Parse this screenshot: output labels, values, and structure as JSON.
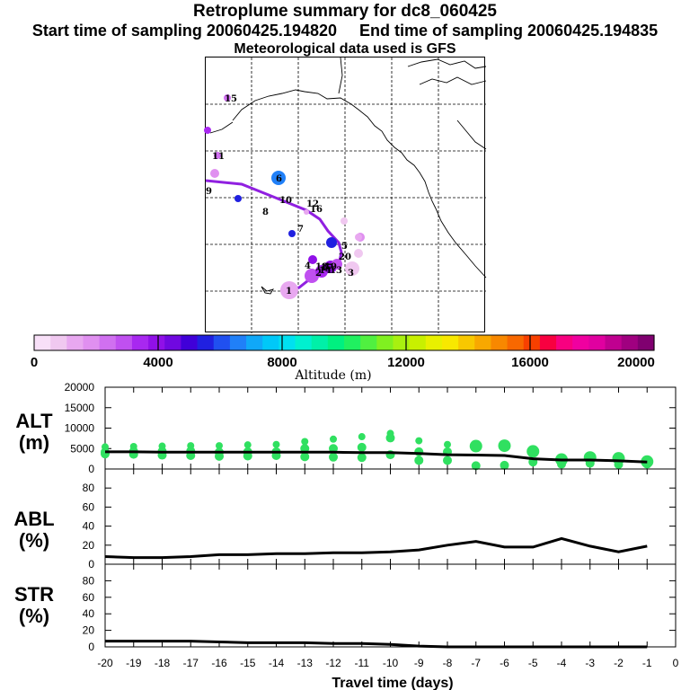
{
  "header": {
    "title": "Retroplume summary for dc8_060425",
    "start_label": "Start time of sampling 20060425.194820",
    "end_label": "End time of sampling 20060425.194835",
    "met_label": "Meteorological data used is GFS"
  },
  "colorbar": {
    "ticks": [
      "0",
      "4000",
      "8000",
      "12000",
      "16000",
      "20000"
    ],
    "label": "Altitude (m)",
    "colors": [
      "#f8e0f8",
      "#f0c8f0",
      "#e8a8f0",
      "#e090f0",
      "#d070f0",
      "#c050f0",
      "#a828f0",
      "#9010e8",
      "#7008e0",
      "#4000d8",
      "#2020e0",
      "#2050f0",
      "#2080f8",
      "#10a8f8",
      "#00c8f8",
      "#00e0f0",
      "#00f0d0",
      "#00f0a8",
      "#00f080",
      "#20f060",
      "#50f040",
      "#80f020",
      "#a8f010",
      "#c8f000",
      "#e8f000",
      "#f8e800",
      "#f8c800",
      "#f8a800",
      "#f88800",
      "#f86800",
      "#f84000",
      "#f80040",
      "#f80080",
      "#f000a0",
      "#e000a0",
      "#c00090",
      "#a00080",
      "#800070"
    ]
  },
  "map": {
    "trajectory_labels": [
      "1",
      "2",
      "3",
      "4",
      "5",
      "6",
      "7",
      "8",
      "9",
      "10",
      "11",
      "12",
      "13",
      "14",
      "15",
      "16",
      "17",
      "18",
      "19",
      "20"
    ]
  },
  "chart_data": [
    {
      "type": "line",
      "panel": "ALT",
      "ylabel": "ALT\n(m)",
      "ylabel_lines": [
        "ALT",
        "(m)"
      ],
      "ylim": [
        0,
        20000
      ],
      "yticks": [
        "0",
        "5000",
        "10000",
        "15000",
        "20000"
      ],
      "x": [
        -20,
        -19,
        -18,
        -17,
        -16,
        -15,
        -14,
        -13,
        -12,
        -11,
        -10,
        -9,
        -8,
        -7,
        -6,
        -5,
        -4,
        -3,
        -2,
        -1
      ],
      "values": [
        4200,
        4200,
        4100,
        4100,
        4100,
        4100,
        4100,
        4100,
        4100,
        4000,
        4000,
        3800,
        3500,
        3400,
        3300,
        2500,
        2200,
        2200,
        2000,
        1700
      ],
      "scatter": [
        {
          "x": -20,
          "ys": [
            5400,
            4100,
            3700
          ]
        },
        {
          "x": -19,
          "ys": [
            5500,
            4300,
            3600
          ]
        },
        {
          "x": -18,
          "ys": [
            5600,
            4300,
            3400
          ]
        },
        {
          "x": -17,
          "ys": [
            5700,
            4400,
            3300
          ]
        },
        {
          "x": -16,
          "ys": [
            5700,
            4100,
            3100
          ]
        },
        {
          "x": -15,
          "ys": [
            5900,
            4200,
            3200
          ]
        },
        {
          "x": -14,
          "ys": [
            6000,
            4200,
            3300
          ]
        },
        {
          "x": -13,
          "ys": [
            6700,
            5000,
            3000
          ]
        },
        {
          "x": -12,
          "ys": [
            7300,
            5000,
            2900
          ]
        },
        {
          "x": -11,
          "ys": [
            7900,
            5300,
            2800
          ]
        },
        {
          "x": -10,
          "ys": [
            8700,
            7600,
            3500
          ]
        },
        {
          "x": -9,
          "ys": [
            6900,
            4200,
            2100
          ]
        },
        {
          "x": -8,
          "ys": [
            6000,
            4200,
            2100
          ]
        },
        {
          "x": -7,
          "ys": [
            5600,
            800
          ]
        },
        {
          "x": -6,
          "ys": [
            5700,
            900
          ]
        },
        {
          "x": -5,
          "ys": [
            4300,
            1700
          ]
        },
        {
          "x": -4,
          "ys": [
            2300,
            1200
          ]
        },
        {
          "x": -3,
          "ys": [
            2800,
            1400
          ]
        },
        {
          "x": -2,
          "ys": [
            2600,
            1100
          ]
        },
        {
          "x": -1,
          "ys": [
            1800,
            1200
          ]
        }
      ]
    },
    {
      "type": "line",
      "panel": "ABL",
      "ylabel": "ABL\n(%)",
      "ylabel_lines": [
        "ABL",
        "(%)"
      ],
      "ylim": [
        0,
        100
      ],
      "yticks": [
        "0",
        "20",
        "40",
        "60",
        "80"
      ],
      "x": [
        -20,
        -19,
        -18,
        -17,
        -16,
        -15,
        -14,
        -13,
        -12,
        -11,
        -10,
        -9,
        -8,
        -7,
        -6,
        -5,
        -4,
        -3,
        -2,
        -1
      ],
      "values": [
        8,
        7,
        7,
        8,
        10,
        10,
        11,
        11,
        12,
        12,
        13,
        15,
        20,
        24,
        18,
        18,
        27,
        19,
        13,
        19
      ]
    },
    {
      "type": "line",
      "panel": "STR",
      "ylabel": "STR\n(%)",
      "ylabel_lines": [
        "STR",
        "(%)"
      ],
      "ylim": [
        0,
        100
      ],
      "yticks": [
        "0",
        "20",
        "40",
        "60",
        "80"
      ],
      "x": [
        -20,
        -19,
        -18,
        -17,
        -16,
        -15,
        -14,
        -13,
        -12,
        -11,
        -10,
        -9,
        -8,
        -7,
        -6,
        -5,
        -4,
        -3,
        -2,
        -1
      ],
      "values": [
        7,
        7,
        7,
        7,
        6,
        5,
        5,
        5,
        4,
        4,
        3,
        1,
        0,
        0,
        0,
        0,
        0,
        0,
        0,
        0
      ],
      "xlabel": "Travel time (days)",
      "xticks": [
        "-20",
        "-19",
        "-18",
        "-17",
        "-16",
        "-15",
        "-14",
        "-13",
        "-12",
        "-11",
        "-10",
        "-9",
        "-8",
        "-7",
        "-6",
        "-5",
        "-4",
        "-3",
        "-2",
        "-1",
        "0"
      ]
    }
  ]
}
